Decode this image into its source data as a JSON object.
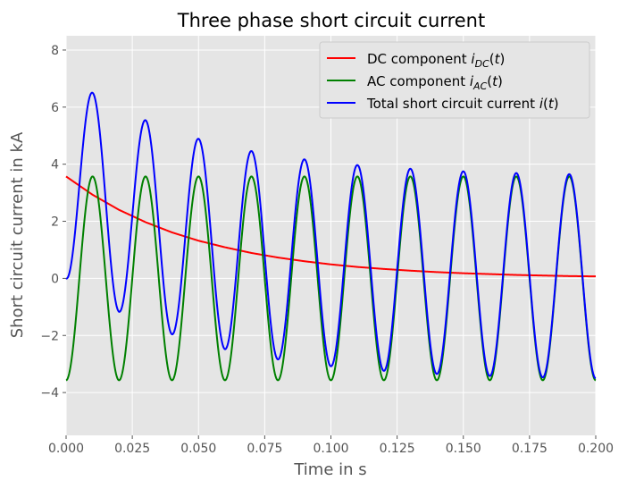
{
  "chart_data": {
    "type": "line",
    "title": "Three phase short circuit current",
    "xlabel": "Time in s",
    "ylabel": "Short circuit current in kA",
    "xlim": [
      0,
      0.2
    ],
    "ylim": [
      -5.5,
      8.5
    ],
    "xticks": [
      "0.000",
      "0.025",
      "0.050",
      "0.075",
      "0.100",
      "0.125",
      "0.150",
      "0.175",
      "0.200"
    ],
    "yticks": [
      "−4",
      "−2",
      "0",
      "2",
      "4",
      "6",
      "8"
    ],
    "grid": true,
    "legend_position": "upper right",
    "style": "ggplot",
    "series": [
      {
        "name": "DC component",
        "subscript": "DC",
        "color": "#ff0000",
        "x": [
          0.0,
          0.01,
          0.02,
          0.03,
          0.04,
          0.05,
          0.06,
          0.07,
          0.08,
          0.09,
          0.1,
          0.11,
          0.12,
          0.13,
          0.14,
          0.15,
          0.16,
          0.17,
          0.18,
          0.19,
          0.2
        ],
        "y": [
          3.57,
          2.93,
          2.4,
          1.97,
          1.61,
          1.32,
          1.09,
          0.89,
          0.73,
          0.6,
          0.49,
          0.4,
          0.33,
          0.27,
          0.22,
          0.18,
          0.15,
          0.12,
          0.1,
          0.08,
          0.07
        ]
      },
      {
        "name": "AC component",
        "subscript": "AC",
        "color": "#008000",
        "amplitude": 3.57,
        "frequency_hz": 50,
        "phase": "-cos"
      },
      {
        "name": "Total short circuit current",
        "subscript": "",
        "color": "#0000ff",
        "note_sum": "DC + AC"
      }
    ]
  }
}
